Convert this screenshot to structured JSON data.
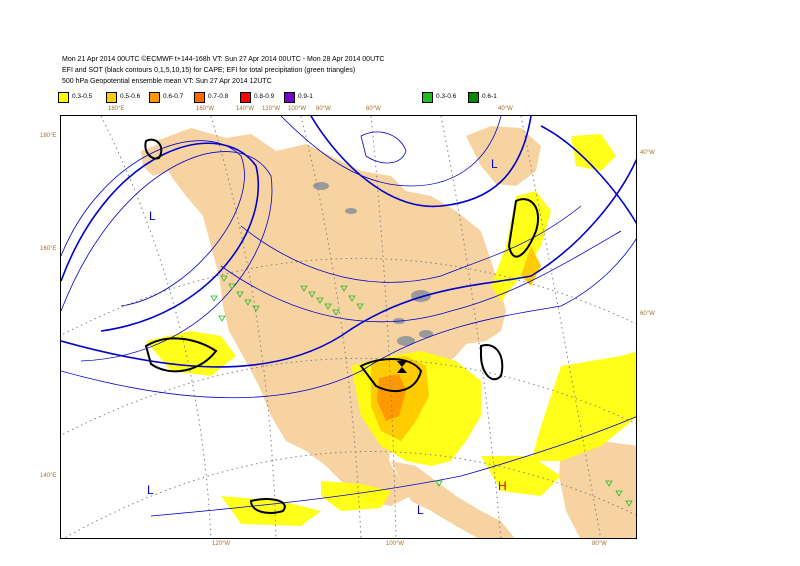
{
  "header": {
    "line1": "Mon 21 Apr 2014 00UTC ©ECMWF t+144-168h  VT: Sun 27 Apr 2014 00UTC - Mon 28 Apr 2014 00UTC",
    "line2": "EFI and SOT (black contours 0,1,5,10,15) for CAPE; EFI for total precipitation (green triangles)",
    "line3": "500 hPa Geopotential ensemble mean VT: Sun 27 Apr 2014 12UTC"
  },
  "legend": [
    {
      "label": "0.3-0.5",
      "color": "#ffff00"
    },
    {
      "label": "0.5-0.6",
      "color": "#ffcc00"
    },
    {
      "label": "0.6-0.7",
      "color": "#ff9900"
    },
    {
      "label": "0.7-0.8",
      "color": "#ff6600"
    },
    {
      "label": "0.8-0.9",
      "color": "#ff0000"
    },
    {
      "label": "0.9-1",
      "color": "#7700cc"
    },
    {
      "label": "0.3-0.6",
      "color": "#22bb22"
    },
    {
      "label": "0.6-1",
      "color": "#008800"
    }
  ],
  "axis_labels": {
    "top": [
      "160°E",
      "180°E",
      "160°W",
      "140°W",
      "120°W",
      "100°W",
      "80°W",
      "60°W",
      "40°W"
    ],
    "bottom": [
      "120°W",
      "100°W",
      "80°W"
    ],
    "left": [
      "180°E",
      "160°E",
      "140°E"
    ],
    "right": [
      "40°W",
      "60°W"
    ]
  },
  "map_symbols": {
    "low_markers": [
      "L",
      "L",
      "L",
      "L"
    ],
    "high_markers": [
      "H"
    ]
  },
  "colors": {
    "land": "#f7d3a1",
    "lake": "#9a9a9a",
    "efi_light": "#ffff00",
    "efi_mid": "#ffcc00",
    "efi_high": "#ff9900",
    "geopotential": "#0000cc",
    "graticule": "#808080"
  }
}
